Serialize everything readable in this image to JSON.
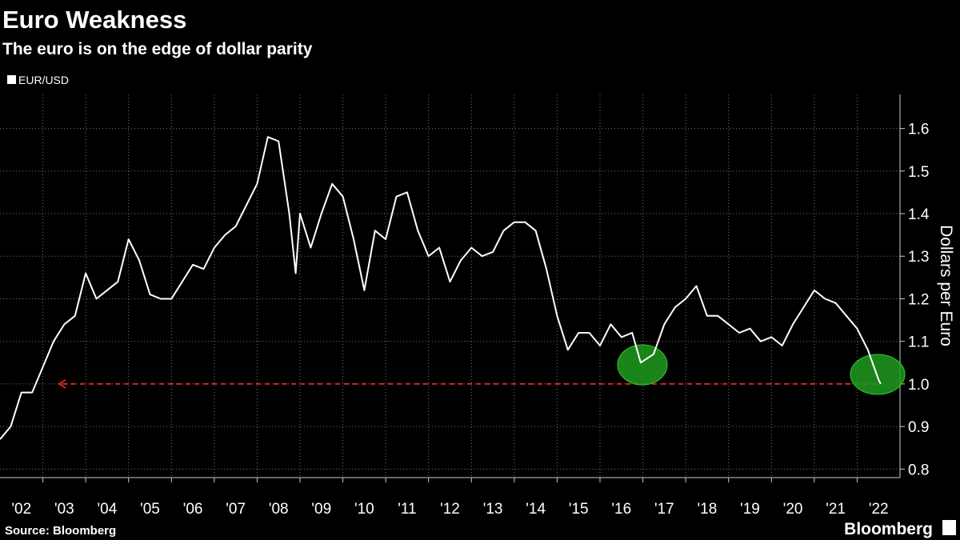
{
  "chart_data": {
    "type": "line",
    "title": "Euro Weakness",
    "subtitle": "The euro is on the edge of dollar parity",
    "y_label": "Dollars per Euro",
    "source": "Source: Bloomberg",
    "brand": "Bloomberg",
    "xlim": [
      2002,
      2023
    ],
    "xticks": [
      {
        "value": 2002,
        "label": "'02"
      },
      {
        "value": 2003,
        "label": "'03"
      },
      {
        "value": 2004,
        "label": "'04"
      },
      {
        "value": 2005,
        "label": "'05"
      },
      {
        "value": 2006,
        "label": "'06"
      },
      {
        "value": 2007,
        "label": "'07"
      },
      {
        "value": 2008,
        "label": "'08"
      },
      {
        "value": 2009,
        "label": "'09"
      },
      {
        "value": 2010,
        "label": "'10"
      },
      {
        "value": 2011,
        "label": "'11"
      },
      {
        "value": 2012,
        "label": "'12"
      },
      {
        "value": 2013,
        "label": "'13"
      },
      {
        "value": 2014,
        "label": "'14"
      },
      {
        "value": 2015,
        "label": "'15"
      },
      {
        "value": 2016,
        "label": "'16"
      },
      {
        "value": 2017,
        "label": "'17"
      },
      {
        "value": 2018,
        "label": "'18"
      },
      {
        "value": 2019,
        "label": "'19"
      },
      {
        "value": 2020,
        "label": "'20"
      },
      {
        "value": 2021,
        "label": "'21"
      },
      {
        "value": 2022,
        "label": "'22"
      }
    ],
    "ylim": [
      0.78,
      1.68
    ],
    "yticks": [
      {
        "value": 0.8,
        "label": "0.8"
      },
      {
        "value": 0.9,
        "label": "0.9"
      },
      {
        "value": 1.0,
        "label": "1.0"
      },
      {
        "value": 1.1,
        "label": "1.1"
      },
      {
        "value": 1.2,
        "label": "1.2"
      },
      {
        "value": 1.3,
        "label": "1.3"
      },
      {
        "value": 1.4,
        "label": "1.4"
      },
      {
        "value": 1.5,
        "label": "1.5"
      },
      {
        "value": 1.6,
        "label": "1.6"
      }
    ],
    "grid": true,
    "x": [
      2002.0,
      2002.25,
      2002.5,
      2002.75,
      2003.0,
      2003.25,
      2003.5,
      2003.75,
      2004.0,
      2004.25,
      2004.5,
      2004.75,
      2005.0,
      2005.25,
      2005.5,
      2005.75,
      2006.0,
      2006.25,
      2006.5,
      2006.75,
      2007.0,
      2007.25,
      2007.5,
      2007.75,
      2008.0,
      2008.25,
      2008.5,
      2008.75,
      2008.9,
      2009.0,
      2009.25,
      2009.5,
      2009.75,
      2010.0,
      2010.25,
      2010.5,
      2010.75,
      2011.0,
      2011.25,
      2011.5,
      2011.75,
      2012.0,
      2012.25,
      2012.5,
      2012.75,
      2013.0,
      2013.25,
      2013.5,
      2013.75,
      2014.0,
      2014.25,
      2014.5,
      2014.75,
      2015.0,
      2015.25,
      2015.5,
      2015.75,
      2016.0,
      2016.25,
      2016.5,
      2016.75,
      2016.95,
      2017.25,
      2017.5,
      2017.75,
      2018.0,
      2018.25,
      2018.5,
      2018.75,
      2019.0,
      2019.25,
      2019.5,
      2019.75,
      2020.0,
      2020.25,
      2020.5,
      2020.75,
      2021.0,
      2021.25,
      2021.5,
      2021.75,
      2022.0,
      2022.25,
      2022.5,
      2022.55
    ],
    "series": [
      {
        "name": "EUR/USD",
        "color": "#ffffff",
        "values": [
          0.87,
          0.9,
          0.98,
          0.98,
          1.04,
          1.1,
          1.14,
          1.16,
          1.26,
          1.2,
          1.22,
          1.24,
          1.34,
          1.29,
          1.21,
          1.2,
          1.2,
          1.24,
          1.28,
          1.27,
          1.32,
          1.35,
          1.37,
          1.42,
          1.47,
          1.58,
          1.57,
          1.4,
          1.26,
          1.4,
          1.32,
          1.4,
          1.47,
          1.44,
          1.34,
          1.22,
          1.36,
          1.34,
          1.44,
          1.45,
          1.36,
          1.3,
          1.32,
          1.24,
          1.29,
          1.32,
          1.3,
          1.31,
          1.36,
          1.38,
          1.38,
          1.36,
          1.27,
          1.16,
          1.08,
          1.12,
          1.12,
          1.09,
          1.14,
          1.11,
          1.12,
          1.05,
          1.07,
          1.14,
          1.18,
          1.2,
          1.23,
          1.16,
          1.16,
          1.14,
          1.12,
          1.13,
          1.1,
          1.11,
          1.09,
          1.14,
          1.18,
          1.22,
          1.2,
          1.19,
          1.16,
          1.13,
          1.08,
          1.01,
          1.0
        ]
      }
    ]
  }
}
